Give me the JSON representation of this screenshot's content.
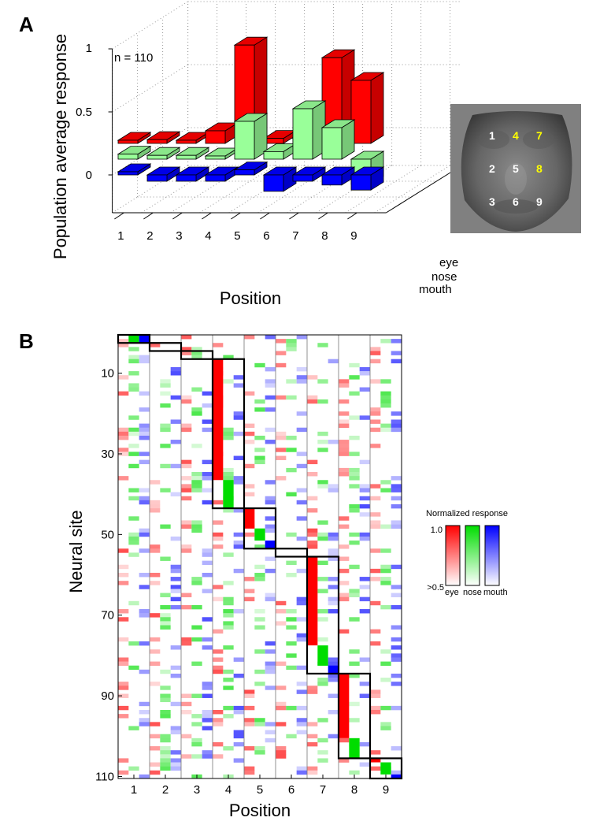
{
  "panel_labels": {
    "a": "A",
    "b": "B"
  },
  "panel_a": {
    "ylabel": "Population average response",
    "xlabel": "Position",
    "annotation": "n = 110",
    "y_ticks": [
      "1",
      "0.5",
      "0"
    ],
    "x_ticks": [
      "1",
      "2",
      "3",
      "4",
      "5",
      "6",
      "7",
      "8",
      "9"
    ],
    "depth_labels": [
      "eye",
      "nose",
      "mouth"
    ]
  },
  "face_image": {
    "labels": [
      "1",
      "4",
      "7",
      "2",
      "5",
      "8",
      "3",
      "6",
      "9"
    ],
    "highlighted": [
      "4",
      "7",
      "8"
    ],
    "highlight_color": "#ffff00",
    "label_color": "#ffffff",
    "background_color": "#808080"
  },
  "panel_b": {
    "ylabel": "Neural site",
    "xlabel": "Position",
    "y_ticks": [
      "10",
      "30",
      "50",
      "70",
      "90",
      "110"
    ],
    "x_ticks": [
      "1",
      "2",
      "3",
      "4",
      "5",
      "6",
      "7",
      "8",
      "9"
    ]
  },
  "colorbar": {
    "title": "Normalized response",
    "top_label": "1.0",
    "bottom_label": ">0.5",
    "labels": [
      "eye",
      "nose",
      "mouth"
    ],
    "colors": [
      "#ff0000",
      "#00dd00",
      "#0000ff"
    ]
  },
  "chart_data": [
    {
      "type": "bar",
      "title": "",
      "xlabel": "Position",
      "ylabel": "Population average response",
      "categories": [
        "1",
        "2",
        "3",
        "4",
        "5",
        "6",
        "7",
        "8",
        "9"
      ],
      "ylim": [
        -0.3,
        1
      ],
      "series": [
        {
          "name": "eye",
          "color": "#ff0000",
          "values": [
            0.02,
            0.03,
            0.02,
            0.1,
            0.78,
            0.04,
            0.04,
            0.68,
            0.5
          ]
        },
        {
          "name": "nose",
          "color": "#99ff99",
          "values": [
            0.04,
            0.03,
            0.03,
            0.02,
            0.3,
            0.06,
            0.4,
            0.25,
            -0.2
          ]
        },
        {
          "name": "mouth",
          "color": "#0000ff",
          "values": [
            0.02,
            -0.05,
            -0.05,
            -0.05,
            0.04,
            -0.13,
            -0.05,
            -0.08,
            -0.12
          ]
        }
      ]
    },
    {
      "type": "heatmap",
      "xlabel": "Position",
      "ylabel": "Neural site",
      "x": [
        "1",
        "2",
        "3",
        "4",
        "5",
        "6",
        "7",
        "8",
        "9"
      ],
      "columns_per_position": [
        "eye",
        "nose",
        "mouth"
      ],
      "n_sites": 110,
      "grid": false,
      "legend": "right",
      "groups": [
        {
          "position": 1,
          "sites": [
            1,
            2
          ]
        },
        {
          "position": 2,
          "sites": [
            3,
            4
          ]
        },
        {
          "position": 3,
          "sites": [
            5,
            6
          ]
        },
        {
          "position": 4,
          "sites": [
            7,
            43
          ]
        },
        {
          "position": 5,
          "sites": [
            44,
            53
          ]
        },
        {
          "position": 6,
          "sites": [
            54,
            55
          ]
        },
        {
          "position": 7,
          "sites": [
            56,
            84
          ]
        },
        {
          "position": 8,
          "sites": [
            85,
            105
          ]
        },
        {
          "position": 9,
          "sites": [
            106,
            110
          ]
        }
      ],
      "strong_blocks": [
        {
          "position": 4,
          "feature": "eye",
          "sites": [
            7,
            36
          ]
        },
        {
          "position": 4,
          "feature": "nose",
          "sites": [
            37,
            43
          ]
        },
        {
          "position": 5,
          "feature": "eye",
          "sites": [
            44,
            48
          ]
        },
        {
          "position": 5,
          "feature": "nose",
          "sites": [
            49,
            51
          ]
        },
        {
          "position": 5,
          "feature": "mouth",
          "sites": [
            52,
            53
          ]
        },
        {
          "position": 7,
          "feature": "eye",
          "sites": [
            56,
            77
          ]
        },
        {
          "position": 7,
          "feature": "nose",
          "sites": [
            78,
            82
          ]
        },
        {
          "position": 7,
          "feature": "mouth",
          "sites": [
            83,
            84
          ]
        },
        {
          "position": 8,
          "feature": "eye",
          "sites": [
            85,
            100
          ]
        },
        {
          "position": 8,
          "feature": "nose",
          "sites": [
            101,
            105
          ]
        },
        {
          "position": 9,
          "feature": "eye",
          "sites": [
            106,
            106
          ]
        },
        {
          "position": 9,
          "feature": "nose",
          "sites": [
            107,
            109
          ]
        },
        {
          "position": 9,
          "feature": "mouth",
          "sites": [
            110,
            110
          ]
        },
        {
          "position": 1,
          "feature": "nose",
          "sites": [
            1,
            2
          ]
        },
        {
          "position": 1,
          "feature": "mouth",
          "sites": [
            1,
            2
          ]
        }
      ]
    }
  ]
}
